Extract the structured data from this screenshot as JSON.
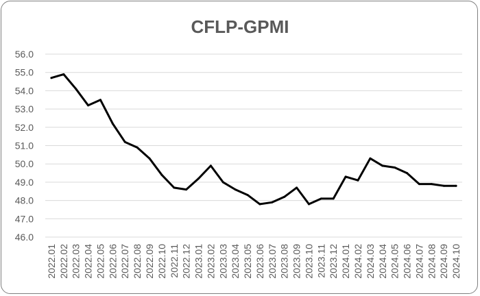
{
  "chart_data": {
    "type": "line",
    "title": "CFLP-GPMI",
    "xlabel": "",
    "ylabel": "",
    "ylim": [
      46.0,
      56.0
    ],
    "ytick_step": 1.0,
    "ytick_labels": [
      "46.0",
      "47.0",
      "48.0",
      "49.0",
      "50.0",
      "51.0",
      "52.0",
      "53.0",
      "54.0",
      "55.0",
      "56.0"
    ],
    "grid": true,
    "legend": "none",
    "line_color": "#000000",
    "categories": [
      "2022.01",
      "2022.02",
      "2022.03",
      "2022.04",
      "2022.05",
      "2022.06",
      "2022.07",
      "2022.08",
      "2022.09",
      "2022.10",
      "2022.11",
      "2022.12",
      "2023.01",
      "2023.02",
      "2023.03",
      "2023.04",
      "2023.05",
      "2023.06",
      "2023.07",
      "2023.08",
      "2023.09",
      "2023.10",
      "2023.11",
      "2023.12",
      "2024.01",
      "2024.02",
      "2024.03",
      "2024.04",
      "2024.05",
      "2024.06",
      "2024.07",
      "2024.08",
      "2024.09",
      "2024.10"
    ],
    "series": [
      {
        "values": [
          54.7,
          54.9,
          54.1,
          53.2,
          53.5,
          52.2,
          51.2,
          50.9,
          50.3,
          49.4,
          48.7,
          48.6,
          49.2,
          49.9,
          49.0,
          48.6,
          48.3,
          47.8,
          47.9,
          48.2,
          48.7,
          47.8,
          48.1,
          48.1,
          49.3,
          49.1,
          50.3,
          49.9,
          49.8,
          49.5,
          48.9,
          48.9,
          48.8,
          48.8
        ]
      }
    ]
  }
}
